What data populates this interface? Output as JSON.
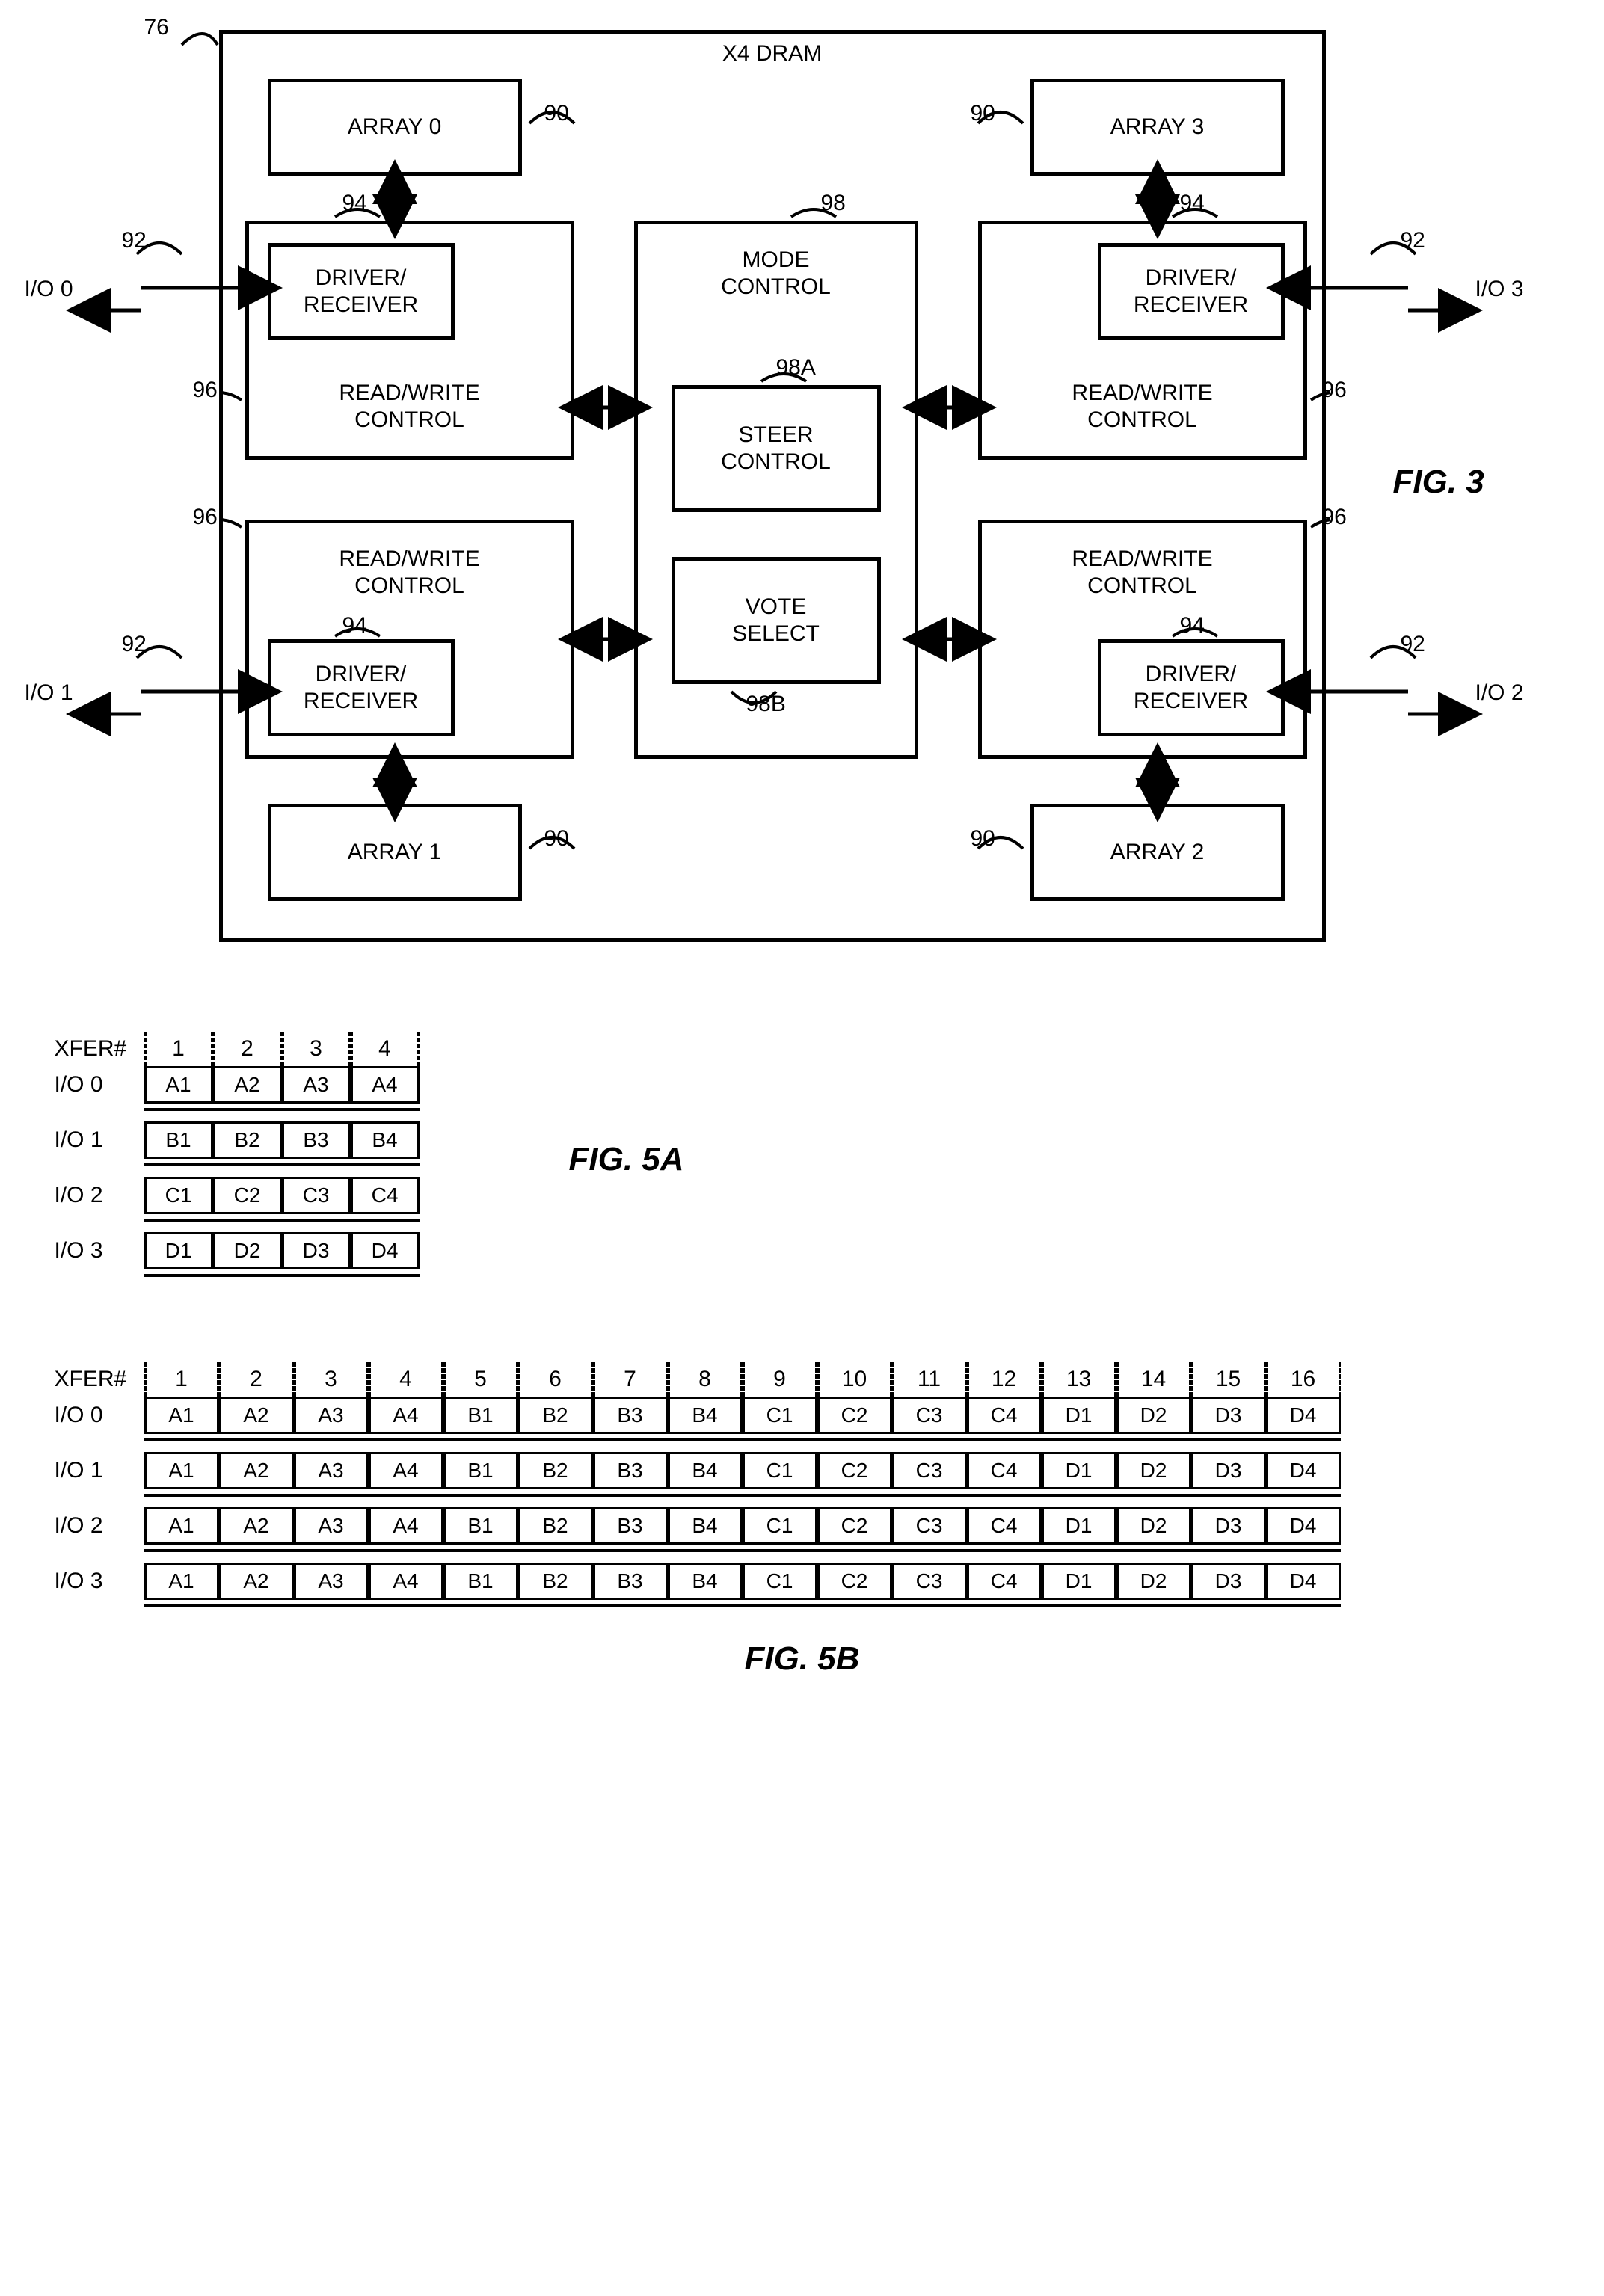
{
  "fig3": {
    "title": "X4 DRAM",
    "outer_ref": "76",
    "fig_label": "FIG. 3",
    "arrays": [
      {
        "label": "ARRAY 0",
        "ref": "90"
      },
      {
        "label": "ARRAY 1",
        "ref": "90"
      },
      {
        "label": "ARRAY 2",
        "ref": "90"
      },
      {
        "label": "ARRAY 3",
        "ref": "90"
      }
    ],
    "driver_label": "DRIVER/\nRECEIVER",
    "driver_ref": "94",
    "rw_label": "READ/WRITE\nCONTROL",
    "rw_ref": "96",
    "mode_label": "MODE\nCONTROL",
    "mode_ref": "98",
    "steer_label": "STEER\nCONTROL",
    "steer_ref": "98A",
    "vote_label": "VOTE\nSELECT",
    "vote_ref": "98B",
    "io_ref": "92",
    "io_labels": [
      "I/O 0",
      "I/O 1",
      "I/O 2",
      "I/O 3"
    ]
  },
  "fig5a": {
    "fig_label": "FIG. 5A",
    "xfer_label": "XFER#",
    "cols": [
      "1",
      "2",
      "3",
      "4"
    ],
    "rows": [
      {
        "label": "I/O 0",
        "cells": [
          "A1",
          "A2",
          "A3",
          "A4"
        ]
      },
      {
        "label": "I/O 1",
        "cells": [
          "B1",
          "B2",
          "B3",
          "B4"
        ]
      },
      {
        "label": "I/O 2",
        "cells": [
          "C1",
          "C2",
          "C3",
          "C4"
        ]
      },
      {
        "label": "I/O 3",
        "cells": [
          "D1",
          "D2",
          "D3",
          "D4"
        ]
      }
    ]
  },
  "fig5b": {
    "fig_label": "FIG. 5B",
    "xfer_label": "XFER#",
    "cols": [
      "1",
      "2",
      "3",
      "4",
      "5",
      "6",
      "7",
      "8",
      "9",
      "10",
      "11",
      "12",
      "13",
      "14",
      "15",
      "16"
    ],
    "rows": [
      {
        "label": "I/O 0",
        "cells": [
          "A1",
          "A2",
          "A3",
          "A4",
          "B1",
          "B2",
          "B3",
          "B4",
          "C1",
          "C2",
          "C3",
          "C4",
          "D1",
          "D2",
          "D3",
          "D4"
        ]
      },
      {
        "label": "I/O 1",
        "cells": [
          "A1",
          "A2",
          "A3",
          "A4",
          "B1",
          "B2",
          "B3",
          "B4",
          "C1",
          "C2",
          "C3",
          "C4",
          "D1",
          "D2",
          "D3",
          "D4"
        ]
      },
      {
        "label": "I/O 2",
        "cells": [
          "A1",
          "A2",
          "A3",
          "A4",
          "B1",
          "B2",
          "B3",
          "B4",
          "C1",
          "C2",
          "C3",
          "C4",
          "D1",
          "D2",
          "D3",
          "D4"
        ]
      },
      {
        "label": "I/O 3",
        "cells": [
          "A1",
          "A2",
          "A3",
          "A4",
          "B1",
          "B2",
          "B3",
          "B4",
          "C1",
          "C2",
          "C3",
          "C4",
          "D1",
          "D2",
          "D3",
          "D4"
        ]
      }
    ]
  },
  "style": {
    "stroke": "#000000",
    "stroke_width": 5,
    "font_size_block": 30,
    "font_size_fig": 44
  }
}
